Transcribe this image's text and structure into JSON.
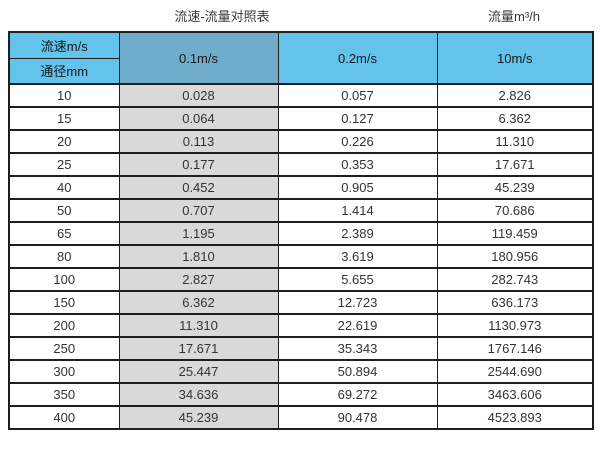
{
  "titles": {
    "left": "流速-流量对照表",
    "right": "流量m³/h"
  },
  "table": {
    "corner": {
      "top": "流速m/s",
      "bottom": "通径mm"
    },
    "velocity_headers": [
      "0.1m/s",
      "0.2m/s",
      "10m/s"
    ],
    "rows": [
      [
        "10",
        "0.028",
        "0.057",
        "2.826"
      ],
      [
        "15",
        "0.064",
        "0.127",
        "6.362"
      ],
      [
        "20",
        "0.113",
        "0.226",
        "11.310"
      ],
      [
        "25",
        "0.177",
        "0.353",
        "17.671"
      ],
      [
        "40",
        "0.452",
        "0.905",
        "45.239"
      ],
      [
        "50",
        "0.707",
        "1.414",
        "70.686"
      ],
      [
        "65",
        "1.195",
        "2.389",
        "119.459"
      ],
      [
        "80",
        "1.810",
        "3.619",
        "180.956"
      ],
      [
        "100",
        "2.827",
        "5.655",
        "282.743"
      ],
      [
        "150",
        "6.362",
        "12.723",
        "636.173"
      ],
      [
        "200",
        "11.310",
        "22.619",
        "1130.973"
      ],
      [
        "250",
        "17.671",
        "35.343",
        "1767.146"
      ],
      [
        "300",
        "25.447",
        "50.894",
        "2544.690"
      ],
      [
        "350",
        "34.636",
        "69.272",
        "3463.606"
      ],
      [
        "400",
        "45.239",
        "90.478",
        "4523.893"
      ]
    ]
  },
  "colors": {
    "header_blue": "#63c3ea",
    "header_muted_blue": "#6fadcb",
    "gray_column": "#d9d9d9",
    "border": "#1f1f1f",
    "cell_text": "#333333"
  },
  "chart_data": {
    "type": "table",
    "title": "流速-流量对照表",
    "unit_label": "流量m³/h",
    "row_header_label": "通径mm",
    "col_header_label": "流速m/s",
    "columns": [
      "0.1m/s",
      "0.2m/s",
      "10m/s"
    ],
    "diameters_mm": [
      10,
      15,
      20,
      25,
      40,
      50,
      65,
      80,
      100,
      150,
      200,
      250,
      300,
      350,
      400
    ],
    "series": [
      {
        "name": "0.1m/s",
        "values": [
          0.028,
          0.064,
          0.113,
          0.177,
          0.452,
          0.707,
          1.195,
          1.81,
          2.827,
          6.362,
          11.31,
          17.671,
          25.447,
          34.636,
          45.239
        ]
      },
      {
        "name": "0.2m/s",
        "values": [
          0.057,
          0.127,
          0.226,
          0.353,
          0.905,
          1.414,
          2.389,
          3.619,
          5.655,
          12.723,
          22.619,
          35.343,
          50.894,
          69.272,
          90.478
        ]
      },
      {
        "name": "10m/s",
        "values": [
          2.826,
          6.362,
          11.31,
          17.671,
          45.239,
          70.686,
          119.459,
          180.956,
          282.743,
          636.173,
          1130.973,
          1767.146,
          2544.69,
          3463.606,
          4523.893
        ]
      }
    ]
  }
}
